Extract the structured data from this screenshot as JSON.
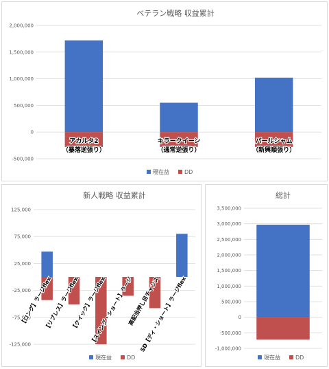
{
  "colors": {
    "profit": "#4472C4",
    "dd": "#C0504D",
    "grid": "#d9d9d9",
    "axis_text": "#595959",
    "title": "#595959"
  },
  "chart_data": [
    {
      "id": "veteran",
      "type": "bar",
      "title": "ベテラン戦略 収益累計",
      "categories": [
        "アカルタ2\n（暴落逆張り）",
        "キラークイーン\n（通常逆張り）",
        "パールシャム\n（新興順張り）"
      ],
      "series": [
        {
          "name": "現在益",
          "values": [
            1720000,
            550000,
            1020000
          ]
        },
        {
          "name": "DD",
          "values": [
            -280000,
            -280000,
            -280000
          ]
        }
      ],
      "ylim": [
        -500000,
        2000000
      ],
      "yticks": [
        -500000,
        0,
        500000,
        1000000,
        1500000,
        2000000
      ],
      "ytick_labels": [
        "-500,000",
        "0",
        "500,000",
        "1,000,000",
        "1,500,000",
        "2,000,000"
      ],
      "grid": true,
      "legend": "bottom"
    },
    {
      "id": "rookie",
      "type": "bar",
      "title": "新人戦略 収益累計",
      "categories": [
        "【ロング】ラージflex",
        "【リブレス】ラージflex",
        "【クイック】ラージflex",
        "【スイング・ショート】ラージ",
        "高配当押し目チャンス",
        "SD【ディ・ショート】ラージflex"
      ],
      "series": [
        {
          "name": "現在益",
          "values": [
            47000,
            0,
            0,
            0,
            0,
            80000
          ]
        },
        {
          "name": "DD",
          "values": [
            -43000,
            -51000,
            -125000,
            -35000,
            -58000,
            0
          ]
        }
      ],
      "ylim": [
        -125000,
        125000
      ],
      "yticks": [
        -125000,
        -75000,
        -25000,
        25000,
        75000,
        125000
      ],
      "ytick_labels": [
        "-125,000",
        "-75,000",
        "-25,000",
        "25,000",
        "75,000",
        "125,000"
      ],
      "grid": true,
      "legend": "bottom"
    },
    {
      "id": "total",
      "type": "bar",
      "title": "総計",
      "categories": [
        ""
      ],
      "series": [
        {
          "name": "現在益",
          "values": [
            2970000
          ]
        },
        {
          "name": "DD",
          "values": [
            -720000
          ]
        }
      ],
      "ylim": [
        -1000000,
        3500000
      ],
      "yticks": [
        -1000000,
        -500000,
        0,
        500000,
        1000000,
        1500000,
        2000000,
        2500000,
        3000000,
        3500000
      ],
      "ytick_labels": [
        "-1,000,000",
        "-500,000",
        "0",
        "500,000",
        "1,000,000",
        "1,500,000",
        "2,000,000",
        "2,500,000",
        "3,000,000",
        "3,500,000"
      ],
      "grid": true,
      "legend": "bottom"
    }
  ]
}
